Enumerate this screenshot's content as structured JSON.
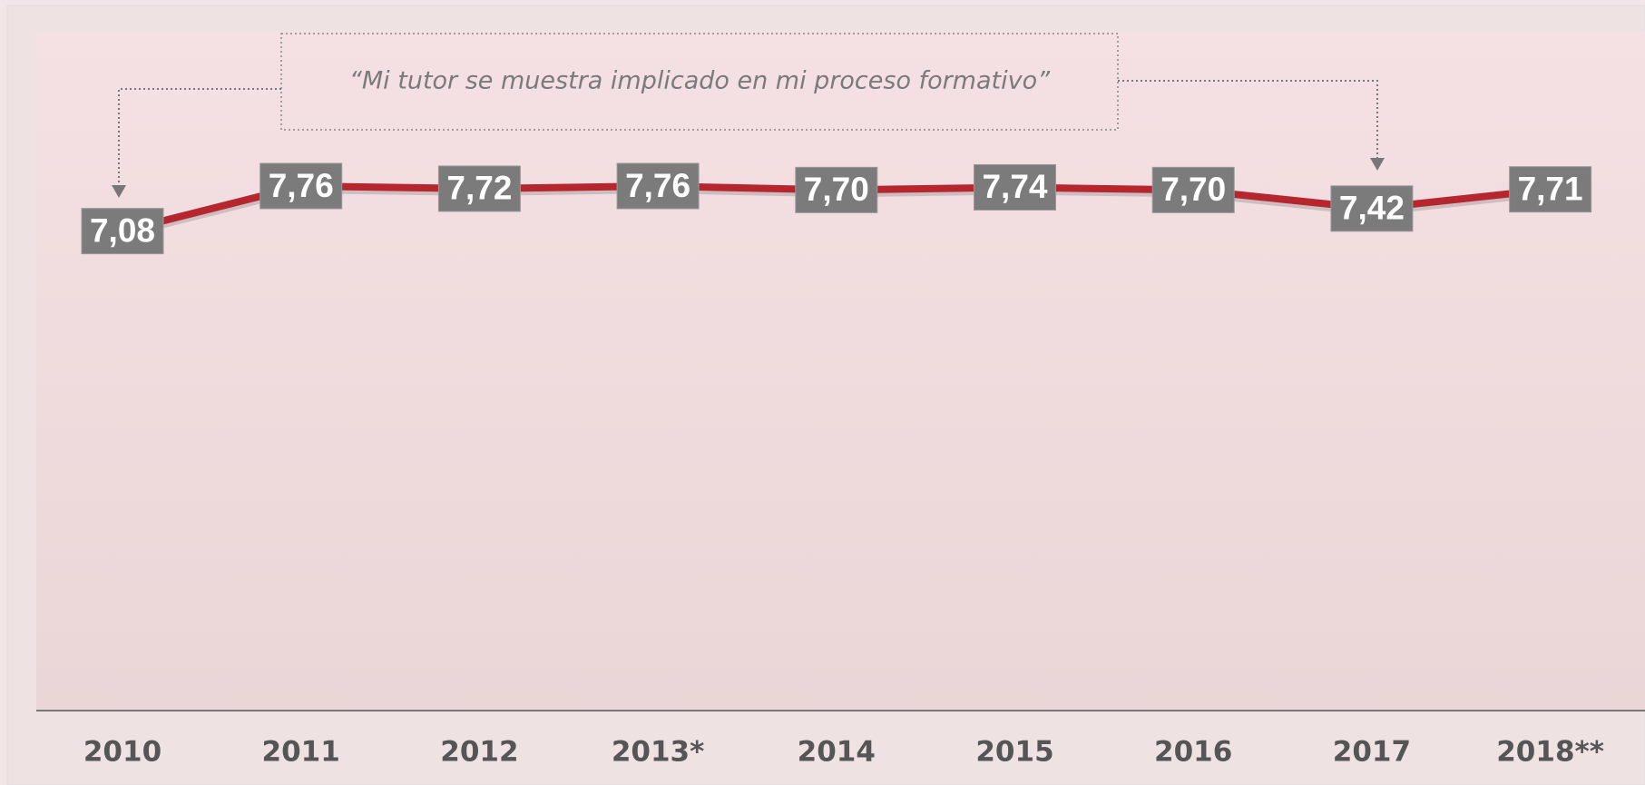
{
  "chart_data": {
    "type": "line",
    "annotation": "“Mi tutor se muestra implicado en mi proceso formativo”",
    "categories": [
      "2010",
      "2011",
      "2012",
      "2013*",
      "2014",
      "2015",
      "2016",
      "2017",
      "2018**"
    ],
    "values": [
      7.08,
      7.76,
      7.72,
      7.76,
      7.7,
      7.74,
      7.7,
      7.42,
      7.71
    ],
    "value_labels": [
      "7,08",
      "7,76",
      "7,72",
      "7,76",
      "7,70",
      "7,74",
      "7,70",
      "7,42",
      "7,71"
    ],
    "color": "#b5262f"
  }
}
